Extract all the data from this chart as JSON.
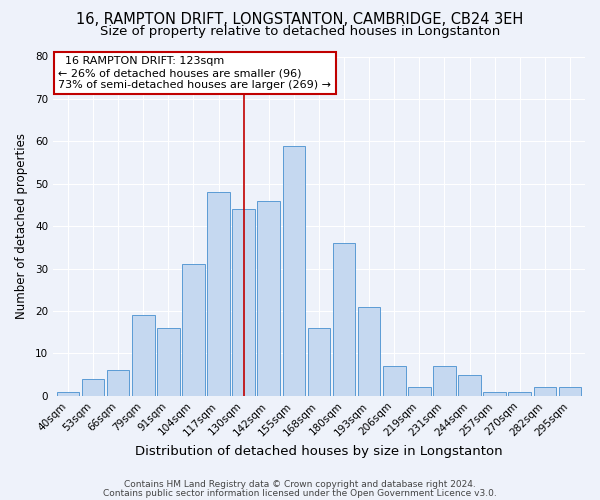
{
  "title": "16, RAMPTON DRIFT, LONGSTANTON, CAMBRIDGE, CB24 3EH",
  "subtitle": "Size of property relative to detached houses in Longstanton",
  "xlabel": "Distribution of detached houses by size in Longstanton",
  "ylabel": "Number of detached properties",
  "categories": [
    "40sqm",
    "53sqm",
    "66sqm",
    "79sqm",
    "91sqm",
    "104sqm",
    "117sqm",
    "130sqm",
    "142sqm",
    "155sqm",
    "168sqm",
    "180sqm",
    "193sqm",
    "206sqm",
    "219sqm",
    "231sqm",
    "244sqm",
    "257sqm",
    "270sqm",
    "282sqm",
    "295sqm"
  ],
  "values": [
    1,
    4,
    6,
    19,
    16,
    31,
    48,
    44,
    46,
    59,
    16,
    36,
    21,
    7,
    2,
    7,
    5,
    1,
    1,
    2,
    2
  ],
  "bar_color": "#c5d8f0",
  "bar_edge_color": "#5b9bd5",
  "ylim": [
    0,
    80
  ],
  "yticks": [
    0,
    10,
    20,
    30,
    40,
    50,
    60,
    70,
    80
  ],
  "vline_x": 7.0,
  "vline_color": "#c00000",
  "annotation_title": "16 RAMPTON DRIFT: 123sqm",
  "annotation_line1": "← 26% of detached houses are smaller (96)",
  "annotation_line2": "73% of semi-detached houses are larger (269) →",
  "annotation_box_color": "#ffffff",
  "annotation_box_edge": "#c00000",
  "bg_color": "#eef2fa",
  "footer1": "Contains HM Land Registry data © Crown copyright and database right 2024.",
  "footer2": "Contains public sector information licensed under the Open Government Licence v3.0.",
  "title_fontsize": 10.5,
  "subtitle_fontsize": 9.5,
  "xlabel_fontsize": 9.5,
  "ylabel_fontsize": 8.5,
  "tick_fontsize": 7.5,
  "annotation_fontsize": 8,
  "footer_fontsize": 6.5
}
